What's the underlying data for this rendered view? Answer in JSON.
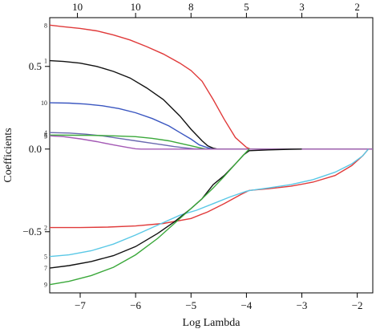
{
  "chart_data": {
    "type": "line",
    "xlabel": "Log Lambda",
    "ylabel": "Coefficients",
    "xlim": [
      -7.55,
      -1.72
    ],
    "ylim": [
      -0.87,
      0.795
    ],
    "x_ticks": [
      -7,
      -6,
      -5,
      -4,
      -3,
      -2
    ],
    "x_tick_labels": [
      "−7",
      "−6",
      "−5",
      "−4",
      "−3",
      "−2"
    ],
    "y_ticks": [
      -0.5,
      0.0,
      0.5
    ],
    "y_tick_labels": [
      "−0.5",
      "0.0",
      "0.5"
    ],
    "top_axis": {
      "ticks": [
        -7.05,
        -6.0,
        -5.0,
        -4.0,
        -3.0,
        -2.0
      ],
      "labels": [
        "10",
        "10",
        "8",
        "5",
        "3",
        "2"
      ]
    },
    "grid": false,
    "series": [
      {
        "label": "8",
        "color": "#e03a3a",
        "x": [
          -7.55,
          -7.3,
          -7.0,
          -6.7,
          -6.4,
          -6.1,
          -5.8,
          -5.5,
          -5.2,
          -5.0,
          -4.8,
          -4.6,
          -4.4,
          -4.2,
          -4.0,
          -3.93,
          -1.72
        ],
        "y": [
          0.75,
          0.74,
          0.73,
          0.715,
          0.69,
          0.66,
          0.62,
          0.575,
          0.52,
          0.475,
          0.41,
          0.3,
          0.18,
          0.07,
          0.01,
          0.0,
          0.0
        ]
      },
      {
        "label": "1",
        "color": "#111111",
        "x": [
          -7.55,
          -7.3,
          -7.0,
          -6.7,
          -6.4,
          -6.1,
          -5.8,
          -5.5,
          -5.2,
          -5.0,
          -4.8,
          -4.7,
          -4.6,
          -4.52,
          -1.72
        ],
        "y": [
          0.535,
          0.53,
          0.52,
          0.5,
          0.47,
          0.43,
          0.37,
          0.3,
          0.2,
          0.12,
          0.05,
          0.02,
          0.005,
          0.0,
          0.0
        ]
      },
      {
        "label": "10",
        "color": "#3a56c0",
        "x": [
          -7.55,
          -7.2,
          -6.9,
          -6.6,
          -6.3,
          -6.0,
          -5.7,
          -5.4,
          -5.2,
          -5.0,
          -4.85,
          -4.7,
          -4.6,
          -1.72
        ],
        "y": [
          0.28,
          0.278,
          0.272,
          0.262,
          0.245,
          0.22,
          0.185,
          0.14,
          0.1,
          0.06,
          0.025,
          0.008,
          0.0,
          0.0
        ]
      },
      {
        "label": "4",
        "color": "#6a6ab0",
        "x": [
          -7.55,
          -7.2,
          -6.9,
          -6.6,
          -6.3,
          -6.0,
          -5.7,
          -5.5,
          -5.3,
          -5.1,
          -4.95,
          -4.8,
          -1.72
        ],
        "y": [
          0.1,
          0.097,
          0.09,
          0.08,
          0.065,
          0.05,
          0.035,
          0.025,
          0.015,
          0.007,
          0.002,
          0.0,
          0.0
        ]
      },
      {
        "label": "6",
        "color": "#3aa83a",
        "x": [
          -7.55,
          -7.2,
          -6.8,
          -6.4,
          -6.0,
          -5.7,
          -5.4,
          -5.2,
          -5.0,
          -4.85,
          -4.75,
          -4.7,
          -1.72
        ],
        "y": [
          0.085,
          0.084,
          0.083,
          0.08,
          0.075,
          0.065,
          0.05,
          0.035,
          0.02,
          0.008,
          0.002,
          0.0,
          0.0
        ]
      },
      {
        "label": "3",
        "color": "#a45ab5",
        "x": [
          -7.55,
          -7.3,
          -7.0,
          -6.7,
          -6.4,
          -6.15,
          -6.0,
          -5.9,
          -1.72
        ],
        "y": [
          0.08,
          0.075,
          0.062,
          0.045,
          0.025,
          0.01,
          0.002,
          0.0,
          0.0
        ]
      },
      {
        "label": "2",
        "color": "#e03a3a",
        "x": [
          -7.55,
          -7.0,
          -6.5,
          -6.0,
          -5.5,
          -5.0,
          -4.7,
          -4.4,
          -4.1,
          -3.95,
          -3.6,
          -3.2,
          -2.8,
          -2.4,
          -2.1,
          -1.9,
          -1.8
        ],
        "y": [
          -0.475,
          -0.475,
          -0.472,
          -0.465,
          -0.45,
          -0.42,
          -0.38,
          -0.33,
          -0.275,
          -0.25,
          -0.24,
          -0.225,
          -0.2,
          -0.16,
          -0.1,
          -0.04,
          0.0
        ]
      },
      {
        "label": "5",
        "color": "#5ac8e6",
        "x": [
          -7.55,
          -7.2,
          -6.8,
          -6.4,
          -6.0,
          -5.6,
          -5.2,
          -4.9,
          -4.6,
          -4.3,
          -4.0,
          -3.93,
          -3.6,
          -3.2,
          -2.8,
          -2.4,
          -2.1,
          -1.9,
          -1.8
        ],
        "y": [
          -0.65,
          -0.64,
          -0.615,
          -0.575,
          -0.52,
          -0.46,
          -0.4,
          -0.37,
          -0.33,
          -0.29,
          -0.255,
          -0.25,
          -0.235,
          -0.215,
          -0.185,
          -0.14,
          -0.09,
          -0.04,
          0.0
        ]
      },
      {
        "label": "7",
        "color": "#111111",
        "x": [
          -7.55,
          -7.2,
          -6.8,
          -6.4,
          -6.0,
          -5.6,
          -5.3,
          -5.0,
          -4.8,
          -4.6,
          -4.4,
          -4.2,
          -4.05,
          -3.95,
          -3.6,
          -3.2,
          -3.0
        ],
        "y": [
          -0.72,
          -0.705,
          -0.68,
          -0.645,
          -0.59,
          -0.51,
          -0.44,
          -0.36,
          -0.3,
          -0.215,
          -0.16,
          -0.09,
          -0.035,
          -0.01,
          -0.005,
          -0.001,
          0.0
        ]
      },
      {
        "label": "9",
        "color": "#3aa83a",
        "x": [
          -7.55,
          -7.2,
          -6.8,
          -6.4,
          -6.0,
          -5.6,
          -5.3,
          -5.0,
          -4.8,
          -4.6,
          -4.4,
          -4.2,
          -4.05,
          -3.95
        ],
        "y": [
          -0.82,
          -0.8,
          -0.765,
          -0.715,
          -0.64,
          -0.54,
          -0.45,
          -0.36,
          -0.3,
          -0.235,
          -0.165,
          -0.09,
          -0.035,
          0.0
        ]
      }
    ]
  }
}
